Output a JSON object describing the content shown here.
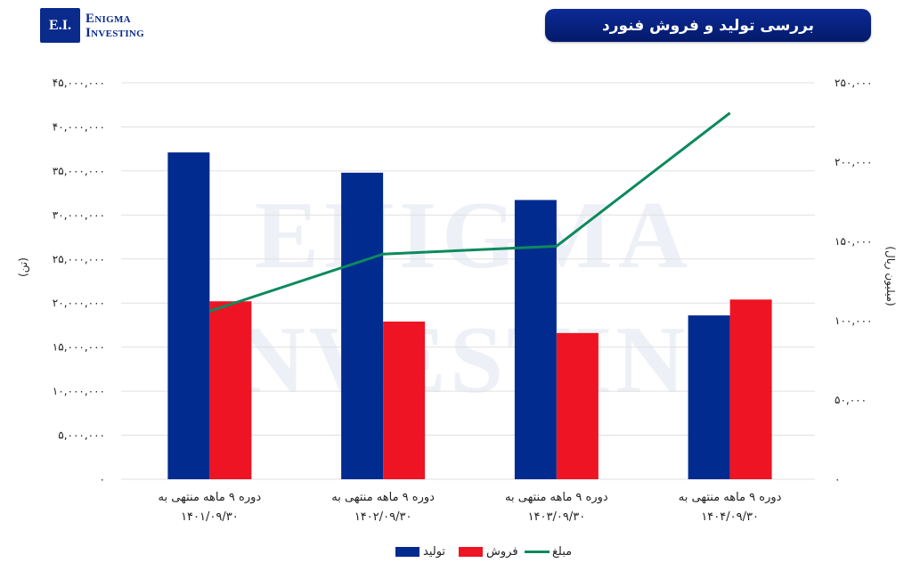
{
  "logo": {
    "badge": "E.I.",
    "line1": "Enigma",
    "line2": "Investing"
  },
  "title": "بررسی تولید و فروش فنورد",
  "watermark": {
    "line1": "ENIGMA",
    "line2": "INVESTING"
  },
  "colors": {
    "production": "#022b8f",
    "sales": "#ee1423",
    "amount": "#0c8a5c",
    "title_bg": "#0a2386",
    "gridline": "#e0e0e0"
  },
  "legend": [
    {
      "label": "تولید",
      "color": "#022b8f",
      "type": "bar"
    },
    {
      "label": "فروش",
      "color": "#ee1423",
      "type": "bar"
    },
    {
      "label": "مبلغ",
      "color": "#0c8a5c",
      "type": "line"
    }
  ],
  "chart_data": {
    "type": "bar",
    "title": "بررسی تولید و فروش فنورد",
    "categories": [
      "دوره ۹ ماهه منتهی به ۱۴۰۱/۰۹/۳۰",
      "دوره ۹ ماهه منتهی به ۱۴۰۲/۰۹/۳۰",
      "دوره ۹ ماهه منتهی به ۱۴۰۳/۰۹/۳۰",
      "دوره ۹ ماهه منتهی به ۱۴۰۴/۰۹/۳۰"
    ],
    "category_lines": [
      [
        "دوره ۹ ماهه منتهی به",
        "۱۴۰۱/۰۹/۳۰"
      ],
      [
        "دوره ۹ ماهه منتهی به",
        "۱۴۰۲/۰۹/۳۰"
      ],
      [
        "دوره ۹ ماهه منتهی به",
        "۱۴۰۳/۰۹/۳۰"
      ],
      [
        "دوره ۹ ماهه منتهی به",
        "۱۴۰۴/۰۹/۳۰"
      ]
    ],
    "series": [
      {
        "name": "تولید",
        "type": "bar",
        "axis": "left",
        "values": [
          37100000,
          34800000,
          31700000,
          18600000
        ]
      },
      {
        "name": "فروش",
        "type": "bar",
        "axis": "left",
        "values": [
          20200000,
          17900000,
          16600000,
          20400000
        ]
      },
      {
        "name": "مبلغ",
        "type": "line",
        "axis": "right",
        "values": [
          106000,
          142000,
          147000,
          231000
        ]
      }
    ],
    "ylabel": "(تن)",
    "ylabel_right": "(میلیون ریال)",
    "ylim": [
      0,
      45000000
    ],
    "ylim_right": [
      0,
      250000
    ],
    "yticks_left": [
      "۰",
      "۵,۰۰۰,۰۰۰",
      "۱۰,۰۰۰,۰۰۰",
      "۱۵,۰۰۰,۰۰۰",
      "۲۰,۰۰۰,۰۰۰",
      "۲۵,۰۰۰,۰۰۰",
      "۳۰,۰۰۰,۰۰۰",
      "۳۵,۰۰۰,۰۰۰",
      "۴۰,۰۰۰,۰۰۰",
      "۴۵,۰۰۰,۰۰۰"
    ],
    "yticks_right": [
      "۰",
      "۵۰,۰۰۰",
      "۱۰۰,۰۰۰",
      "۱۵۰,۰۰۰",
      "۲۰۰,۰۰۰",
      "۲۵۰,۰۰۰"
    ],
    "grid": true,
    "legend_position": "bottom"
  }
}
